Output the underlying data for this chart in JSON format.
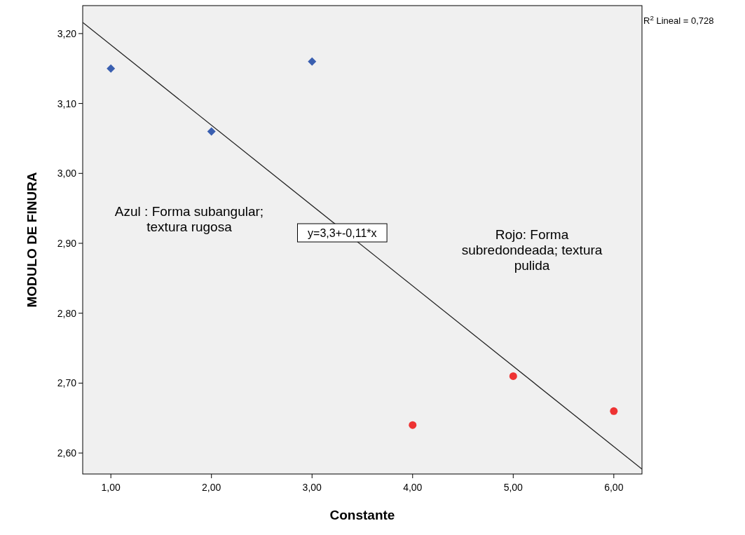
{
  "chart_data": {
    "type": "scatter",
    "xlabel": "Constante",
    "ylabel": "MODULO DE FINURA",
    "xlim": [
      0.72,
      6.28
    ],
    "ylim": [
      2.57,
      3.24
    ],
    "xticks": [
      {
        "value": 1,
        "label": "1,00"
      },
      {
        "value": 2,
        "label": "2,00"
      },
      {
        "value": 3,
        "label": "3,00"
      },
      {
        "value": 4,
        "label": "4,00"
      },
      {
        "value": 5,
        "label": "5,00"
      },
      {
        "value": 6,
        "label": "6,00"
      }
    ],
    "yticks": [
      {
        "value": 2.6,
        "label": "2,60"
      },
      {
        "value": 2.7,
        "label": "2,70"
      },
      {
        "value": 2.8,
        "label": "2,80"
      },
      {
        "value": 2.9,
        "label": "2,90"
      },
      {
        "value": 3.0,
        "label": "3,00"
      },
      {
        "value": 3.1,
        "label": "3,10"
      },
      {
        "value": 3.2,
        "label": "3,20"
      }
    ],
    "series": [
      {
        "color": "#3a5fb0",
        "marker": "diamond",
        "x": [
          1,
          2,
          3
        ],
        "values": [
          3.15,
          3.06,
          3.16
        ]
      },
      {
        "color": "#ee3333",
        "marker": "circle",
        "x": [
          4,
          5,
          6
        ],
        "values": [
          2.64,
          2.71,
          2.66
        ]
      },
      {
        "type": "line",
        "color": "#222222",
        "x": [
          0.72,
          6.28
        ],
        "values": [
          3.216,
          2.577
        ]
      }
    ],
    "annotations": [
      {
        "text": "y=3,3+-0,11*x",
        "x": 3.3,
        "y": 2.915
      },
      "R$^{2}$ Lineal = 0,728",
      "Azul : Forma subangular;\ntextura rugosa",
      "Rojo: Forma\nsubredondeada; textura\npulida"
    ]
  }
}
